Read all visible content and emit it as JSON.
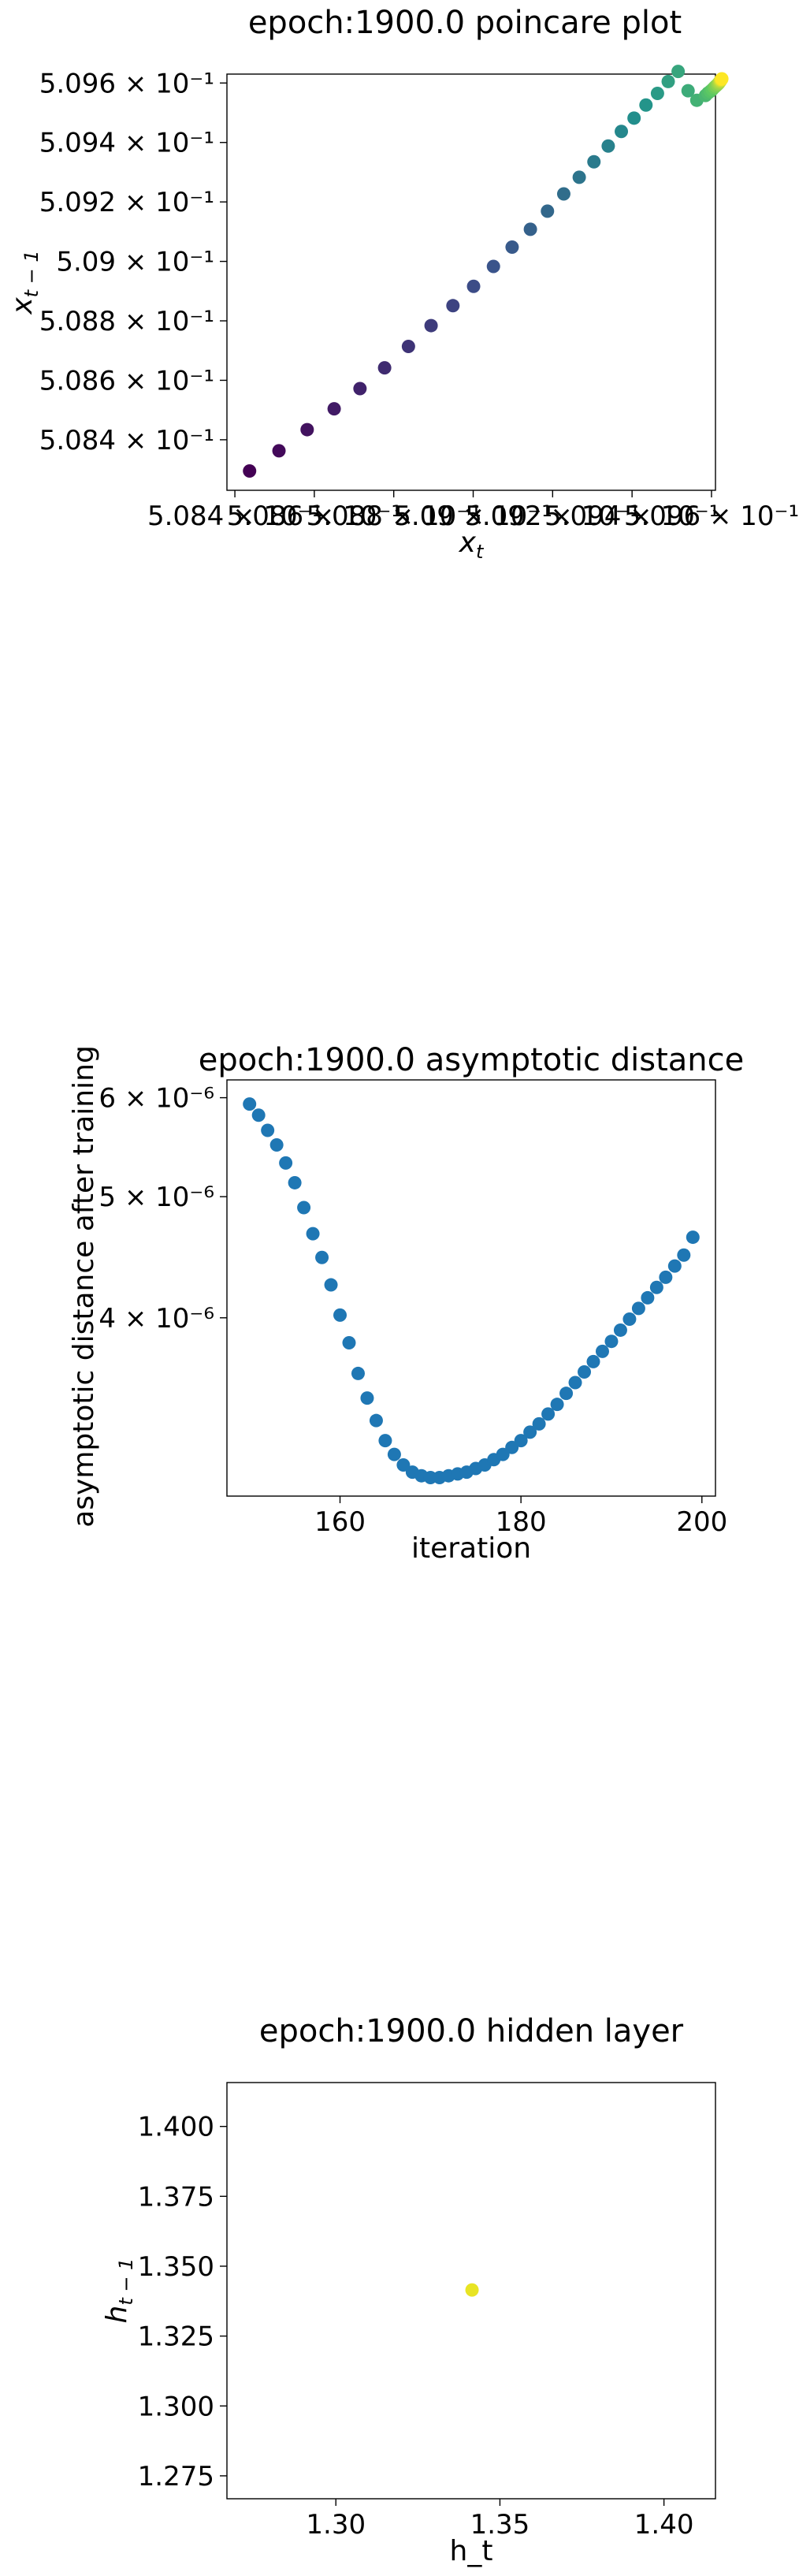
{
  "chart_data": [
    {
      "type": "scatter",
      "title": "epoch:1900.0 poincare plot",
      "xlabel_base": "x",
      "xlabel_sub": "t",
      "ylabel_base": "x",
      "ylabel_sub": "t − 1",
      "colormap": "viridis",
      "xlim": [
        0.50838,
        0.50961
      ],
      "ylim": [
        0.50823,
        0.50963
      ],
      "xticks": [
        0.5084,
        0.5086,
        0.5088,
        0.509,
        0.5092,
        0.5094,
        0.5096
      ],
      "xtick_labels": [
        "5.084 × 10⁻¹",
        "5.086 × 10⁻¹",
        "5.088 × 10⁻¹",
        "5.09 × 10⁻¹",
        "5.092 × 10⁻¹",
        "5.094 × 10⁻¹",
        "5.096 × 10⁻¹"
      ],
      "yticks": [
        0.5084,
        0.5086,
        0.5088,
        0.509,
        0.5092,
        0.5094,
        0.5096
      ],
      "ytick_labels": [
        "5.084 × 10⁻¹",
        "5.086 × 10⁻¹",
        "5.088 × 10⁻¹",
        "5.09 × 10⁻¹",
        "5.092 × 10⁻¹",
        "5.094 × 10⁻¹",
        "5.096 × 10⁻¹"
      ],
      "x": [
        0.508437,
        0.508511,
        0.508582,
        0.50865,
        0.508715,
        0.508777,
        0.508837,
        0.508894,
        0.508949,
        0.509001,
        0.509051,
        0.509098,
        0.509144,
        0.509187,
        0.509228,
        0.509267,
        0.509304,
        0.50934,
        0.509373,
        0.509405,
        0.509435,
        0.509464,
        0.509491,
        0.509516,
        0.509541,
        0.509563,
        0.509585,
        0.509591,
        0.509597,
        0.509602,
        0.509607,
        0.509611,
        0.509615,
        0.509618,
        0.50962,
        0.509622,
        0.509623,
        0.509624,
        0.509625,
        0.509626
      ],
      "y": [
        0.508295,
        0.508363,
        0.508434,
        0.508504,
        0.508572,
        0.508642,
        0.508714,
        0.508784,
        0.508851,
        0.508916,
        0.508983,
        0.509048,
        0.509108,
        0.509169,
        0.509227,
        0.509283,
        0.509335,
        0.509388,
        0.509437,
        0.509482,
        0.509526,
        0.509565,
        0.509605,
        0.509639,
        0.509574,
        0.509542,
        0.509558,
        0.509566,
        0.509572,
        0.509578,
        0.509585,
        0.50959,
        0.509595,
        0.509599,
        0.509603,
        0.509606,
        0.509609,
        0.509611,
        0.509612,
        0.509614
      ]
    },
    {
      "type": "scatter",
      "title": "epoch:1900.0 asymptotic distance",
      "xlabel": "iteration",
      "ylabel": "asymptotic distance after training",
      "yscale": "log",
      "color": "#1f77b4",
      "xlim": [
        147.5,
        201.5
      ],
      "ylim": [
        2.88e-06,
        6.2e-06
      ],
      "xticks": [
        160,
        180,
        200
      ],
      "xtick_labels": [
        "160",
        "180",
        "200"
      ],
      "yticks": [
        4e-06,
        5e-06,
        6e-06
      ],
      "ytick_labels": [
        "4 × 10⁻⁶",
        "5 × 10⁻⁶",
        "6 × 10⁻⁶"
      ],
      "x": [
        150,
        151,
        152,
        153,
        154,
        155,
        156,
        157,
        158,
        159,
        160,
        161,
        162,
        163,
        164,
        165,
        166,
        167,
        168,
        169,
        170,
        171,
        172,
        173,
        174,
        175,
        176,
        177,
        178,
        179,
        180,
        181,
        182,
        183,
        184,
        185,
        186,
        187,
        188,
        189,
        190,
        191,
        192,
        193,
        194,
        195,
        196,
        197,
        198,
        199
      ],
      "y": [
        5.93e-06,
        5.81e-06,
        5.65e-06,
        5.5e-06,
        5.32e-06,
        5.13e-06,
        4.9e-06,
        4.67e-06,
        4.47e-06,
        4.25e-06,
        4.02e-06,
        3.82e-06,
        3.61e-06,
        3.45e-06,
        3.31e-06,
        3.19e-06,
        3.11e-06,
        3.05e-06,
        3.01e-06,
        2.99e-06,
        2.98e-06,
        2.98e-06,
        2.99e-06,
        3e-06,
        3.01e-06,
        3.03e-06,
        3.05e-06,
        3.08e-06,
        3.11e-06,
        3.15e-06,
        3.19e-06,
        3.24e-06,
        3.29e-06,
        3.35e-06,
        3.41e-06,
        3.48e-06,
        3.55e-06,
        3.62e-06,
        3.69e-06,
        3.76e-06,
        3.83e-06,
        3.91e-06,
        3.99e-06,
        4.07e-06,
        4.15e-06,
        4.23e-06,
        4.31e-06,
        4.4e-06,
        4.49e-06,
        4.64e-06
      ]
    },
    {
      "type": "scatter",
      "title": "epoch:1900.0 hidden layer",
      "xlabel": "h_t",
      "ylabel_base": "h",
      "ylabel_sub": "t − 1",
      "color": "#e8e424",
      "xlim": [
        1.2668,
        1.4157
      ],
      "ylim": [
        1.2668,
        1.4157
      ],
      "xticks": [
        1.3,
        1.35,
        1.4
      ],
      "xtick_labels": [
        "1.30",
        "1.35",
        "1.40"
      ],
      "yticks": [
        1.275,
        1.3,
        1.325,
        1.35,
        1.375,
        1.4
      ],
      "ytick_labels": [
        "1.275",
        "1.300",
        "1.325",
        "1.350",
        "1.375",
        "1.400"
      ],
      "x": [
        1.3415
      ],
      "y": [
        1.3415
      ]
    }
  ]
}
